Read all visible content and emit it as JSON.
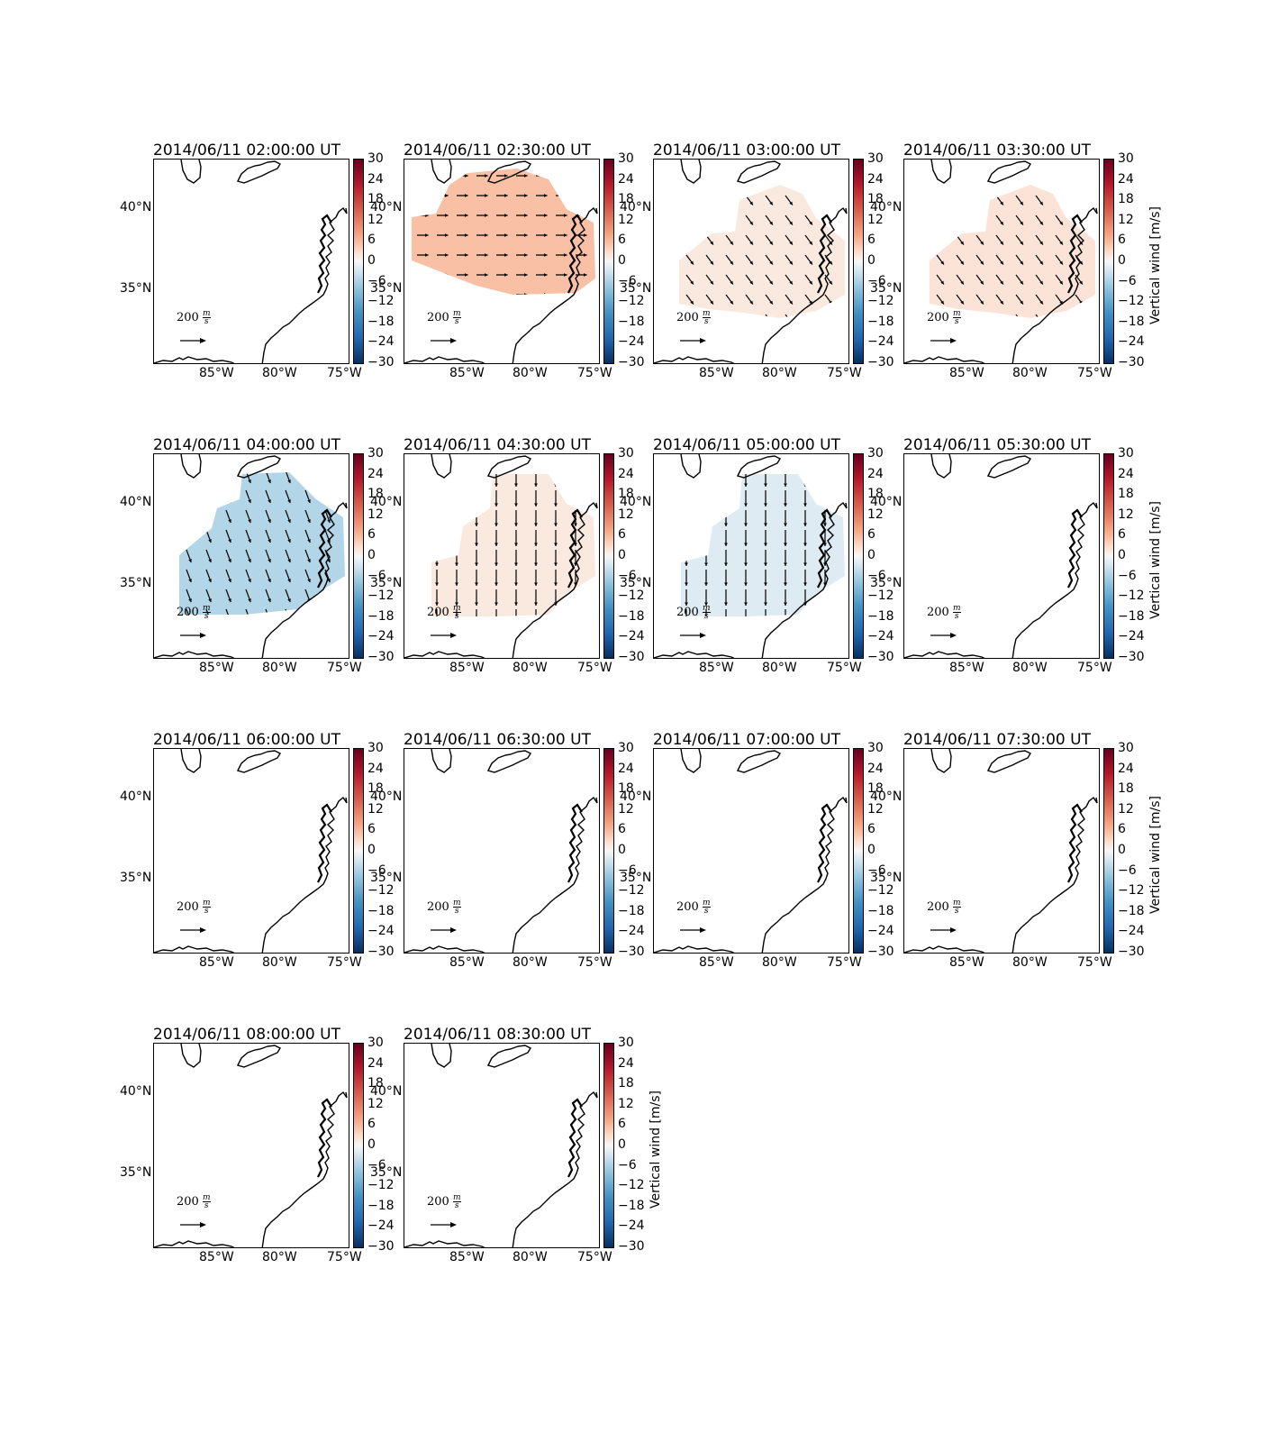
{
  "figure": {
    "colorbar_label": "Vertical wind [m/s]",
    "colorbar_ticks": [
      "30",
      "24",
      "18",
      "12",
      "6",
      "0",
      "−6",
      "−12",
      "−18",
      "−24",
      "−30"
    ],
    "colorbar_range": [
      -30,
      30
    ],
    "colormap": "RdBu_r",
    "lat_labels": [
      "40°N",
      "35°N"
    ],
    "lon_labels": [
      "85°W",
      "80°W",
      "75°W"
    ],
    "scale_arrow_label": "200 m/s",
    "scale_arrow_text": "200",
    "scale_arrow_unit_num": "m",
    "scale_arrow_unit_den": "s",
    "panels": [
      {
        "title": "2014/06/11 02:00:00 UT",
        "field_value": null,
        "wind_dir": null,
        "wind_len": 0
      },
      {
        "title": "2014/06/11 02:30:00 UT",
        "field_value": 9,
        "wind_dir": "east",
        "wind_len": 0.55
      },
      {
        "title": "2014/06/11 03:00:00 UT",
        "field_value": 3,
        "wind_dir": "southeast",
        "wind_len": 0.6
      },
      {
        "title": "2014/06/11 03:30:00 UT",
        "field_value": 4,
        "wind_dir": "southeast",
        "wind_len": 0.6
      },
      {
        "title": "2014/06/11 04:00:00 UT",
        "field_value": -9,
        "wind_dir": "south-southeast",
        "wind_len": 0.75
      },
      {
        "title": "2014/06/11 04:30:00 UT",
        "field_value": 3,
        "wind_dir": "south",
        "wind_len": 1.0
      },
      {
        "title": "2014/06/11 05:00:00 UT",
        "field_value": -4,
        "wind_dir": "south",
        "wind_len": 1.0
      },
      {
        "title": "2014/06/11 05:30:00 UT",
        "field_value": null,
        "wind_dir": null,
        "wind_len": 0
      },
      {
        "title": "2014/06/11 06:00:00 UT",
        "field_value": null,
        "wind_dir": null,
        "wind_len": 0
      },
      {
        "title": "2014/06/11 06:30:00 UT",
        "field_value": null,
        "wind_dir": null,
        "wind_len": 0
      },
      {
        "title": "2014/06/11 07:00:00 UT",
        "field_value": null,
        "wind_dir": null,
        "wind_len": 0
      },
      {
        "title": "2014/06/11 07:30:00 UT",
        "field_value": null,
        "wind_dir": null,
        "wind_len": 0
      },
      {
        "title": "2014/06/11 08:00:00 UT",
        "field_value": null,
        "wind_dir": null,
        "wind_len": 0
      },
      {
        "title": "2014/06/11 08:30:00 UT",
        "field_value": null,
        "wind_dir": null,
        "wind_len": 0
      }
    ]
  }
}
